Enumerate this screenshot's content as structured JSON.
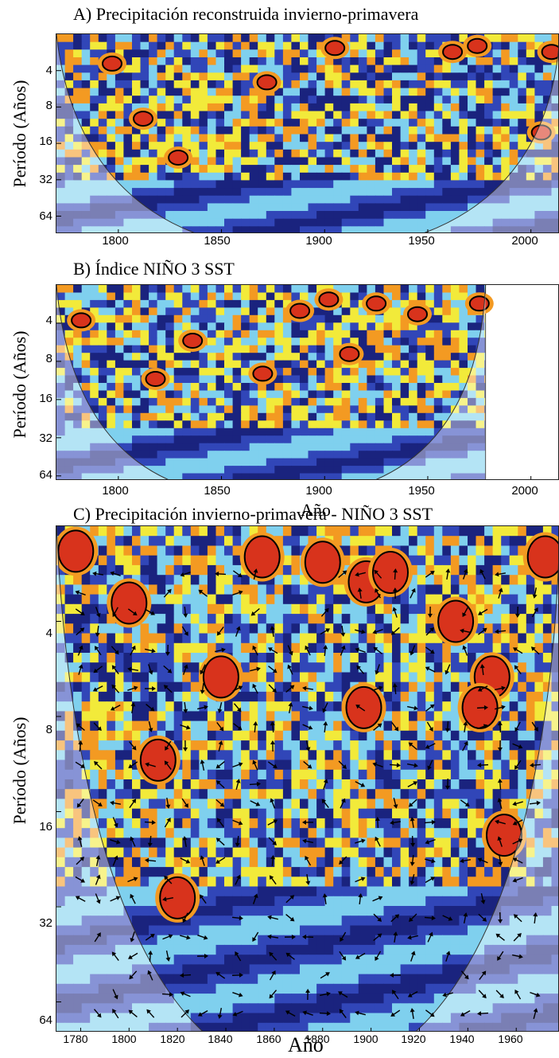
{
  "chart_data": [
    {
      "type": "heatmap",
      "panel": "A)",
      "title": "A)  Precipitación reconstruida invierno-primavera",
      "ylabel": "Período (Años)",
      "xlabel": "",
      "x_ticks": [
        "1800",
        "1850",
        "1900",
        "1950",
        "2000"
      ],
      "y_ticks": [
        "4",
        "8",
        "16",
        "32",
        "64"
      ],
      "xlim": [
        1770,
        2014
      ],
      "ylim": [
        2,
        90
      ],
      "y_scale": "log2",
      "significant_regions": [
        {
          "year": 1797,
          "period": 3.5
        },
        {
          "year": 1872,
          "period": 5
        },
        {
          "year": 1905,
          "period": 2.6
        },
        {
          "year": 1962,
          "period": 2.8
        },
        {
          "year": 1974,
          "period": 2.5
        },
        {
          "year": 2010,
          "period": 2.8
        },
        {
          "year": 1812,
          "period": 10
        },
        {
          "year": 1829,
          "period": 21
        },
        {
          "year": 2005,
          "period": 13
        }
      ]
    },
    {
      "type": "heatmap",
      "panel": "B)",
      "title": "B)  Índice NIÑO 3 SST",
      "ylabel": "Período (Años)",
      "xlabel": "Año",
      "x_ticks": [
        "1800",
        "1850",
        "1900",
        "1950",
        "2000"
      ],
      "y_ticks": [
        "4",
        "8",
        "16",
        "32",
        "64"
      ],
      "xlim": [
        1770,
        2014
      ],
      "ylim": [
        2,
        70
      ],
      "y_scale": "log2",
      "data_end_year": 1978,
      "significant_regions": [
        {
          "year": 1782,
          "period": 3.8
        },
        {
          "year": 1818,
          "period": 11
        },
        {
          "year": 1836,
          "period": 5.5
        },
        {
          "year": 1870,
          "period": 10
        },
        {
          "year": 1888,
          "period": 3.2
        },
        {
          "year": 1902,
          "period": 2.6
        },
        {
          "year": 1912,
          "period": 7
        },
        {
          "year": 1925,
          "period": 2.8
        },
        {
          "year": 1945,
          "period": 3.4
        },
        {
          "year": 1975,
          "period": 2.8
        }
      ]
    },
    {
      "type": "heatmap",
      "panel": "C)",
      "title": "C)  Precipitación invierno-primavera - NIÑO 3 SST",
      "ylabel": "Período (Años)",
      "xlabel": "Año",
      "x_ticks": [
        "1780",
        "1800",
        "1820",
        "1840",
        "1860",
        "1880",
        "1900",
        "1920",
        "1940",
        "1960"
      ],
      "y_ticks": [
        "4",
        "8",
        "16",
        "32",
        "64"
      ],
      "xlim": [
        1770,
        1978
      ],
      "ylim": [
        2,
        80
      ],
      "y_scale": "log2",
      "significant_regions": [
        {
          "year": 1778,
          "period": 2.4
        },
        {
          "year": 1800,
          "period": 3.5
        },
        {
          "year": 1812,
          "period": 11
        },
        {
          "year": 1838,
          "period": 6
        },
        {
          "year": 1855,
          "period": 2.5
        },
        {
          "year": 1880,
          "period": 2.6
        },
        {
          "year": 1898,
          "period": 3
        },
        {
          "year": 1908,
          "period": 2.8
        },
        {
          "year": 1897,
          "period": 7.5
        },
        {
          "year": 1935,
          "period": 4
        },
        {
          "year": 1950,
          "period": 6
        },
        {
          "year": 1945,
          "period": 7.5
        },
        {
          "year": 1955,
          "period": 19
        },
        {
          "year": 1972,
          "period": 2.5
        },
        {
          "year": 1820,
          "period": 30
        }
      ]
    }
  ],
  "colors": {
    "dark_blue": "#1a237e",
    "blue": "#3146b8",
    "light_blue": "#7fd0ee",
    "yellow": "#f2ea3a",
    "orange": "#f39a22",
    "red": "#d8331c",
    "coi_shade": "#ffffff"
  }
}
